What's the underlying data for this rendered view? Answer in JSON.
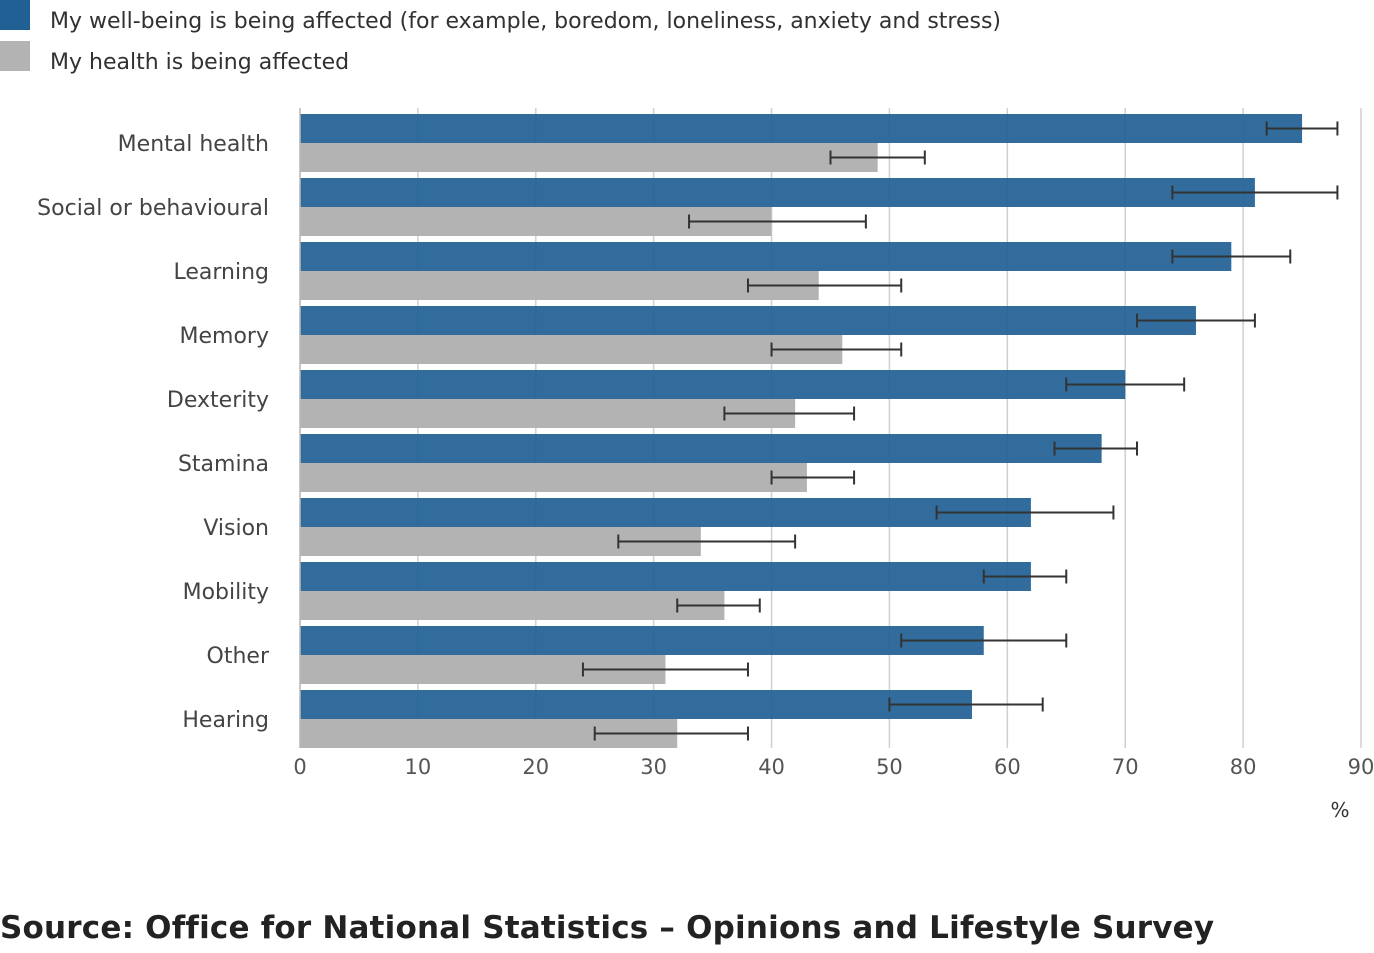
{
  "chart_data": {
    "type": "bar",
    "orientation": "horizontal",
    "categories": [
      "Mental health",
      "Social or behavioural",
      "Learning",
      "Memory",
      "Dexterity",
      "Stamina",
      "Vision",
      "Mobility",
      "Other",
      "Hearing"
    ],
    "series": [
      {
        "name": "My well-being is being affected (for example, boredom, loneliness, anxiety and stress)",
        "color": "#206095",
        "values": [
          85,
          81,
          79,
          76,
          70,
          68,
          62,
          62,
          58,
          57
        ],
        "ci_low": [
          82,
          74,
          74,
          71,
          65,
          64,
          54,
          58,
          51,
          50
        ],
        "ci_high": [
          88,
          88,
          84,
          81,
          75,
          71,
          69,
          65,
          65,
          63
        ]
      },
      {
        "name": "My health is being affected",
        "color": "#b3b3b3",
        "values": [
          49,
          40,
          44,
          46,
          42,
          43,
          34,
          36,
          31,
          32
        ],
        "ci_low": [
          45,
          33,
          38,
          40,
          36,
          40,
          27,
          32,
          24,
          25
        ],
        "ci_high": [
          53,
          48,
          51,
          51,
          47,
          47,
          42,
          39,
          38,
          38
        ]
      }
    ],
    "xlim": [
      0,
      90
    ],
    "xticks": [
      0,
      10,
      20,
      30,
      40,
      50,
      60,
      70,
      80,
      90
    ],
    "xlabel": "%",
    "ylabel": "",
    "grid": true,
    "legend_position": "top-left"
  },
  "source": "Source: Office for National Statistics – Opinions and Lifestyle Survey"
}
